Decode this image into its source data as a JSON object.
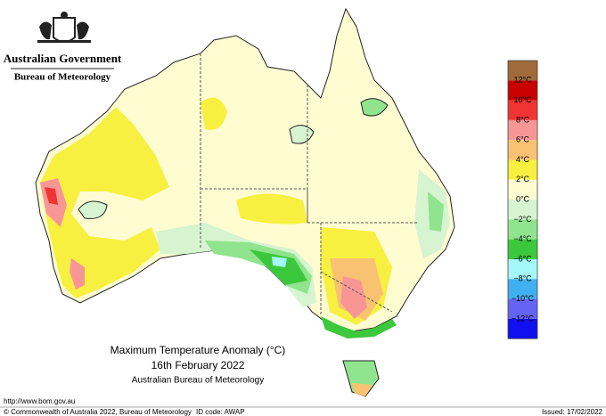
{
  "header": {
    "government": "Australian Government",
    "agency": "Bureau of Meteorology"
  },
  "map": {
    "title": "Maximum Temperature Anomaly (°C)",
    "date": "16th February 2022",
    "source": "Australian Bureau of Meteorology"
  },
  "legend": {
    "colors": [
      "#a06a3a",
      "#c80000",
      "#f03434",
      "#f89696",
      "#f8c272",
      "#f8f040",
      "#fffcd2",
      "#d6f4d0",
      "#90e48e",
      "#3cc83c",
      "#a4f8f8",
      "#40b0f0",
      "#6464f4",
      "#1010f0"
    ],
    "labels": [
      "12°C",
      "10°C",
      "8°C",
      "6°C",
      "4°C",
      "2°C",
      "0°C",
      "−2°C",
      "−4°C",
      "−6°C",
      "−8°C",
      "−10°C",
      "−12°C"
    ]
  },
  "footer": {
    "url": "http://www.bom.gov.au",
    "copyright": "© Commonwealth of Australia 2022, Bureau of Meteorology",
    "id_code": "ID code: AWAP",
    "issued": "Issued: 17/02/2022"
  }
}
